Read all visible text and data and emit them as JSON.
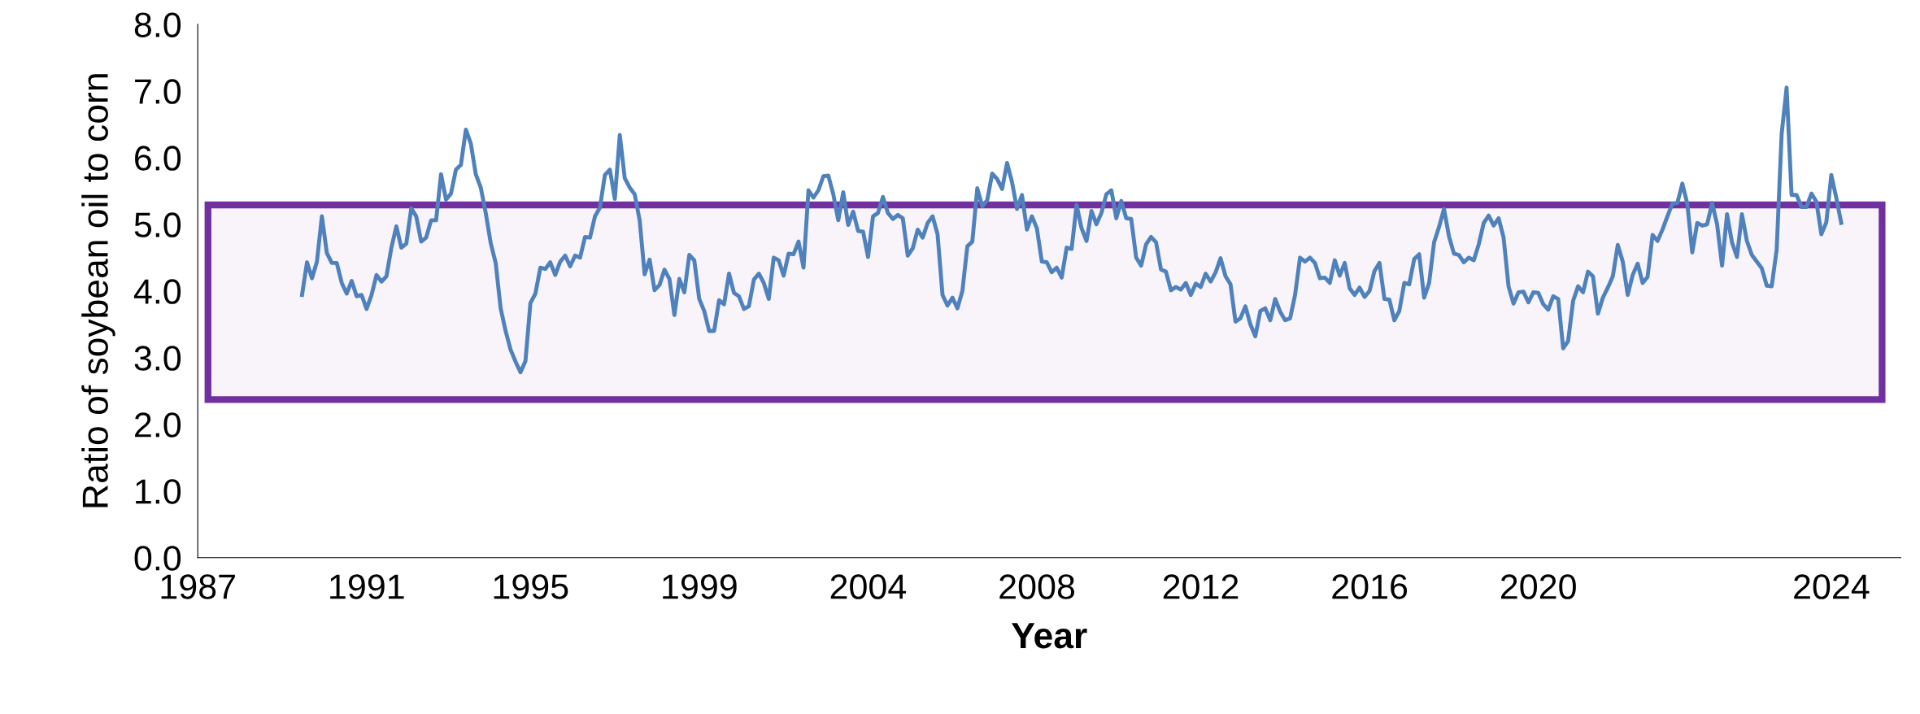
{
  "chart_data": {
    "type": "line",
    "xlabel": "Year",
    "ylabel": "Ratio of soybean oil to corn",
    "ylim": [
      0,
      8
    ],
    "categories": [
      "1987",
      null,
      null,
      null,
      null,
      null,
      null,
      null,
      null,
      null,
      null,
      null,
      null,
      null,
      null,
      null,
      null,
      null,
      null,
      null,
      null,
      null,
      null,
      null,
      null,
      null,
      null,
      null,
      null,
      null,
      null,
      null,
      null,
      null,
      "1991",
      null,
      null,
      null,
      null,
      null,
      null,
      null,
      null,
      null,
      null,
      null,
      null,
      null,
      null,
      null,
      null,
      null,
      null,
      null,
      null,
      null,
      null,
      null,
      null,
      null,
      null,
      null,
      null,
      null,
      null,
      null,
      null,
      "1995",
      null,
      null,
      null,
      null,
      null,
      null,
      null,
      null,
      null,
      null,
      null,
      null,
      null,
      null,
      null,
      null,
      null,
      null,
      null,
      null,
      null,
      null,
      null,
      null,
      null,
      null,
      null,
      null,
      null,
      null,
      null,
      null,
      null,
      "1999",
      null,
      null,
      null,
      null,
      null,
      null,
      null,
      null,
      null,
      null,
      null,
      null,
      null,
      null,
      null,
      null,
      null,
      null,
      null,
      null,
      null,
      null,
      null,
      null,
      null,
      null,
      null,
      null,
      null,
      null,
      null,
      null,
      null,
      "2004",
      null,
      null,
      null,
      null,
      null,
      null,
      null,
      null,
      null,
      null,
      null,
      null,
      null,
      null,
      null,
      null,
      null,
      null,
      null,
      null,
      null,
      null,
      null,
      null,
      null,
      null,
      null,
      null,
      null,
      null,
      null,
      null,
      null,
      "2008",
      null,
      null,
      null,
      null,
      null,
      null,
      null,
      null,
      null,
      null,
      null,
      null,
      null,
      null,
      null,
      null,
      null,
      null,
      null,
      null,
      null,
      null,
      null,
      null,
      null,
      null,
      null,
      null,
      null,
      null,
      null,
      null,
      "2012",
      null,
      null,
      null,
      null,
      null,
      null,
      null,
      null,
      null,
      null,
      null,
      null,
      null,
      null,
      null,
      null,
      null,
      null,
      null,
      null,
      null,
      null,
      null,
      null,
      null,
      null,
      null,
      null,
      null,
      null,
      null,
      null,
      null,
      "2016",
      null,
      null,
      null,
      null,
      null,
      null,
      null,
      null,
      null,
      null,
      null,
      null,
      null,
      null,
      null,
      null,
      null,
      null,
      null,
      null,
      null,
      null,
      null,
      null,
      null,
      null,
      null,
      null,
      null,
      null,
      null,
      null,
      null,
      "2020",
      null,
      null,
      null,
      null,
      null,
      null,
      null,
      null,
      null,
      null,
      null,
      null,
      null,
      null,
      null,
      null,
      null,
      null,
      null,
      null,
      null,
      null,
      null,
      null,
      null,
      null,
      null,
      null,
      null,
      null,
      null,
      null,
      null,
      null,
      null,
      null,
      null,
      null,
      null,
      null,
      null,
      null,
      null,
      null,
      null,
      null,
      null,
      null,
      null,
      null,
      null,
      null,
      null,
      null,
      null,
      null,
      null,
      null,
      "2024",
      null,
      null,
      null,
      null,
      null,
      null,
      null,
      null,
      null,
      null,
      null,
      null,
      null,
      null
    ],
    "yticks": [
      {
        "value": 0,
        "label": "0.0"
      },
      {
        "value": 1,
        "label": "1.0"
      },
      {
        "value": 2,
        "label": "2.0"
      },
      {
        "value": 3,
        "label": "3.0"
      },
      {
        "value": 4,
        "label": "4.0"
      },
      {
        "value": 5,
        "label": "5.0"
      },
      {
        "value": 6,
        "label": "6.0"
      },
      {
        "value": 7,
        "label": "7.0"
      },
      {
        "value": 8,
        "label": "8.0"
      }
    ],
    "grid": false,
    "legend": false,
    "marker": "none",
    "line_style": "solid",
    "bands": [
      {
        "axis": "y",
        "from": 2.37,
        "to": 5.29,
        "color": "#7030a0"
      }
    ],
    "series": [
      {
        "color": "#4f81bd",
        "values": [
          null,
          null,
          null,
          null,
          null,
          null,
          null,
          null,
          null,
          null,
          null,
          null,
          null,
          null,
          null,
          null,
          null,
          null,
          null,
          null,
          null,
          3.94,
          4.43,
          4.19,
          4.44,
          5.12,
          4.57,
          4.42,
          4.42,
          4.12,
          3.96,
          4.15,
          3.92,
          3.94,
          3.73,
          3.94,
          4.24,
          4.14,
          4.22,
          4.65,
          4.97,
          4.65,
          4.71,
          5.24,
          5.12,
          4.74,
          4.8,
          5.06,
          5.06,
          5.75,
          5.37,
          5.46,
          5.82,
          5.89,
          6.42,
          6.21,
          5.75,
          5.55,
          5.17,
          4.72,
          4.42,
          3.74,
          3.4,
          3.12,
          2.94,
          2.78,
          2.95,
          3.82,
          3.96,
          4.35,
          4.33,
          4.43,
          4.24,
          4.44,
          4.53,
          4.37,
          4.53,
          4.5,
          4.81,
          4.8,
          5.12,
          5.25,
          5.74,
          5.82,
          5.38,
          6.34,
          5.69,
          5.55,
          5.45,
          5.06,
          4.25,
          4.47,
          4.01,
          4.09,
          4.32,
          4.18,
          3.64,
          4.18,
          3.98,
          4.54,
          4.46,
          3.88,
          3.7,
          3.4,
          3.4,
          3.86,
          3.8,
          4.26,
          3.97,
          3.92,
          3.73,
          3.77,
          4.17,
          4.26,
          4.12,
          3.88,
          4.5,
          4.46,
          4.23,
          4.56,
          4.55,
          4.74,
          4.35,
          5.51,
          5.4,
          5.51,
          5.72,
          5.73,
          5.45,
          5.06,
          5.48,
          4.99,
          5.19,
          4.9,
          4.89,
          4.51,
          5.12,
          5.17,
          5.41,
          5.17,
          5.08,
          5.14,
          5.09,
          4.53,
          4.64,
          4.92,
          4.8,
          5.02,
          5.12,
          4.85,
          3.94,
          3.78,
          3.9,
          3.74,
          4.0,
          4.67,
          4.74,
          5.54,
          5.27,
          5.36,
          5.76,
          5.68,
          5.53,
          5.92,
          5.63,
          5.23,
          5.44,
          4.92,
          5.12,
          4.94,
          4.44,
          4.43,
          4.28,
          4.35,
          4.2,
          4.65,
          4.63,
          5.29,
          4.94,
          4.75,
          5.2,
          5.0,
          5.17,
          5.45,
          5.51,
          5.09,
          5.35,
          5.09,
          5.08,
          4.5,
          4.38,
          4.7,
          4.81,
          4.73,
          4.32,
          4.29,
          4.01,
          4.06,
          4.02,
          4.12,
          3.94,
          4.11,
          4.06,
          4.26,
          4.14,
          4.28,
          4.49,
          4.22,
          4.1,
          3.54,
          3.59,
          3.77,
          3.5,
          3.32,
          3.7,
          3.74,
          3.56,
          3.88,
          3.69,
          3.56,
          3.59,
          3.94,
          4.5,
          4.44,
          4.5,
          4.42,
          4.19,
          4.2,
          4.12,
          4.46,
          4.23,
          4.42,
          4.04,
          3.94,
          4.05,
          3.91,
          4.0,
          4.3,
          4.42,
          3.88,
          3.87,
          3.56,
          3.7,
          4.12,
          4.1,
          4.48,
          4.55,
          3.9,
          4.12,
          4.73,
          4.96,
          5.23,
          4.82,
          4.56,
          4.54,
          4.43,
          4.5,
          4.46,
          4.7,
          5.02,
          5.13,
          4.98,
          5.09,
          4.8,
          4.07,
          3.81,
          3.98,
          3.99,
          3.83,
          3.98,
          3.97,
          3.8,
          3.72,
          3.92,
          3.88,
          3.14,
          3.25,
          3.85,
          4.07,
          3.98,
          4.29,
          4.22,
          3.66,
          3.9,
          4.05,
          4.22,
          4.69,
          4.44,
          3.94,
          4.24,
          4.41,
          4.12,
          4.21,
          4.84,
          4.75,
          4.92,
          5.12,
          5.31,
          5.32,
          5.61,
          5.31,
          4.58,
          5.02,
          4.98,
          5.0,
          5.32,
          5.0,
          4.38,
          5.15,
          4.73,
          4.51,
          5.15,
          4.75,
          4.54,
          4.44,
          4.34,
          4.08,
          4.07,
          4.62,
          6.35,
          7.05,
          5.44,
          5.44,
          5.26,
          5.26,
          5.46,
          5.34,
          4.85,
          5.03,
          5.74,
          5.4,
          5.02,
          null,
          null,
          null,
          null,
          null,
          null,
          null,
          null,
          null,
          null,
          null,
          null
        ]
      }
    ]
  }
}
